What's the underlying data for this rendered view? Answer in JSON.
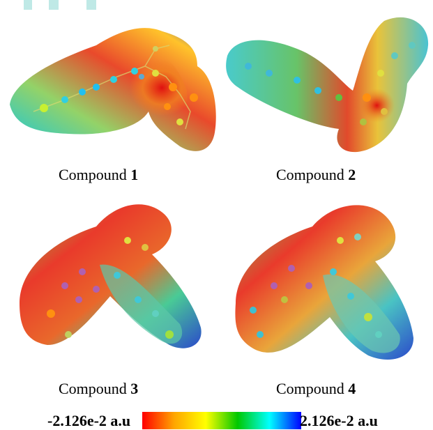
{
  "compounds": [
    {
      "prefix": "Compound ",
      "number": "1"
    },
    {
      "prefix": "Compound ",
      "number": "2"
    },
    {
      "prefix": "Compound ",
      "number": "3"
    },
    {
      "prefix": "Compound ",
      "number": "4"
    }
  ],
  "scale": {
    "min_label": "-2.126e-2 a.u",
    "max_label": "2.126e-2 a.u",
    "colors": [
      "#ff0000",
      "#ffa500",
      "#ffff00",
      "#00c800",
      "#00ffff",
      "#0000ff"
    ]
  }
}
